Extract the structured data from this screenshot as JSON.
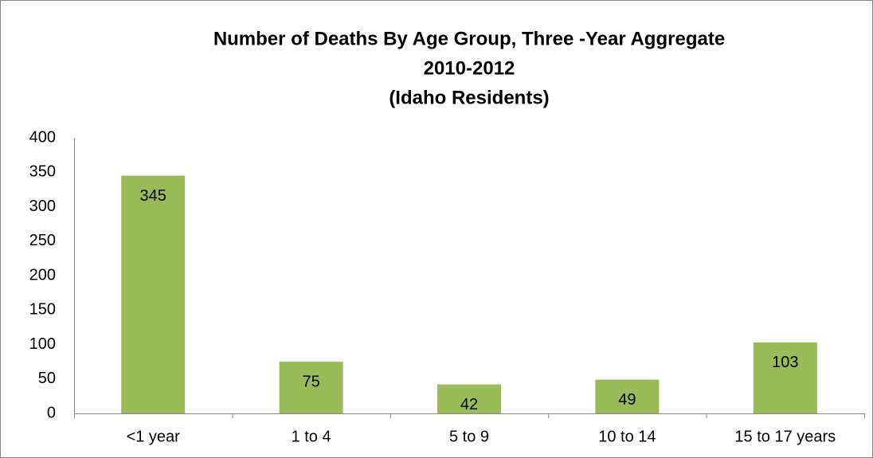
{
  "chart_data": {
    "type": "bar",
    "title": [
      "Number of Deaths By Age Group, Three -Year Aggregate",
      "2010-2012",
      "(Idaho Residents)"
    ],
    "categories": [
      "<1 year",
      "1 to 4",
      "5 to 9",
      "10 to 14",
      "15 to 17 years"
    ],
    "values": [
      345,
      75,
      42,
      49,
      103
    ],
    "color": "#9bbb59",
    "ylim": [
      0,
      400
    ],
    "yticks": [
      0,
      50,
      100,
      150,
      200,
      250,
      300,
      350,
      400
    ],
    "grid": false
  }
}
